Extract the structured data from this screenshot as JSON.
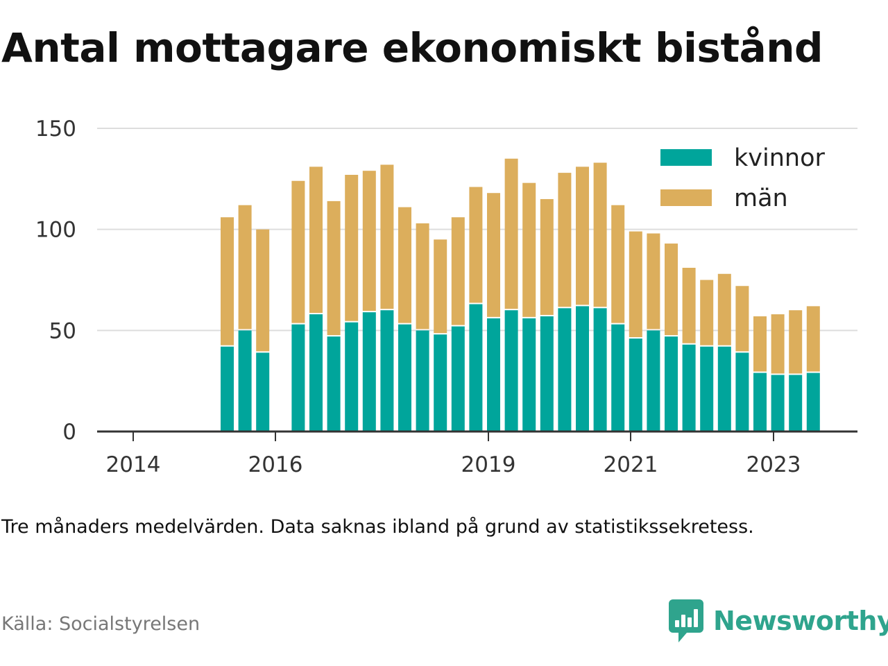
{
  "title": "Antal mottagare ekonomiskt bistånd",
  "note": "Tre månaders medelvärden. Data saknas ibland på grund av statistikssekretess.",
  "source": "Källa: Socialstyrelsen",
  "brand": {
    "name": "Newsworthy",
    "icon": "newsworthy-logo-icon",
    "color": "#2fa48d"
  },
  "colors": {
    "kvinnor": "#00a59b",
    "man": "#dcae5c",
    "grid": "#dddddd",
    "axis": "#333333"
  },
  "chart_data": {
    "type": "bar",
    "stacked": true,
    "x_tick_labels": [
      "2014",
      "2016",
      "2019",
      "2021",
      "2023"
    ],
    "y_ticks": [
      0,
      50,
      100,
      150
    ],
    "ylim": [
      0,
      150
    ],
    "grid": true,
    "legend_position": "top-right",
    "series": [
      {
        "name": "kvinnor",
        "values": [
          null,
          null,
          null,
          null,
          null,
          null,
          null,
          null,
          42,
          50,
          39,
          null,
          53,
          58,
          47,
          54,
          59,
          60,
          53,
          50,
          48,
          52,
          63,
          56,
          60,
          56,
          57,
          61,
          62,
          61,
          53,
          46,
          50,
          47,
          43,
          42,
          42,
          39,
          29,
          28,
          28,
          29
        ]
      },
      {
        "name": "män",
        "values": [
          null,
          null,
          null,
          null,
          null,
          null,
          null,
          null,
          64,
          62,
          61,
          null,
          71,
          73,
          67,
          73,
          70,
          72,
          58,
          53,
          47,
          54,
          58,
          62,
          75,
          67,
          58,
          67,
          69,
          72,
          59,
          53,
          48,
          46,
          38,
          33,
          36,
          33,
          28,
          30,
          32,
          33
        ]
      }
    ],
    "x": [
      "2014-Q1",
      "2014-Q2",
      "2014-Q3",
      "2014-Q4",
      "2015-Q1",
      "2015-Q2",
      "2015-Q3",
      "2015-Q4",
      "2015-M10",
      "2015-M11",
      "2015-M12",
      "2016-Q1",
      "2016-Q2",
      "2016-Q3",
      "2016-Q4",
      "2017-Q1",
      "2017-Q2",
      "2017-Q3",
      "2017-Q4",
      "2018-Q1",
      "2018-Q2",
      "2018-Q3",
      "2018-Q4",
      "2019-Q1",
      "2019-Q2",
      "2019-Q3",
      "2019-Q4",
      "2020-Q1",
      "2020-Q2",
      "2020-Q3",
      "2020-Q4",
      "2021-Q1",
      "2021-Q2",
      "2021-Q3",
      "2021-Q4",
      "2022-Q1",
      "2022-Q2",
      "2022-Q3",
      "2022-Q4",
      "2023-Q1",
      "2023-Q2",
      "2023-Q3"
    ]
  }
}
